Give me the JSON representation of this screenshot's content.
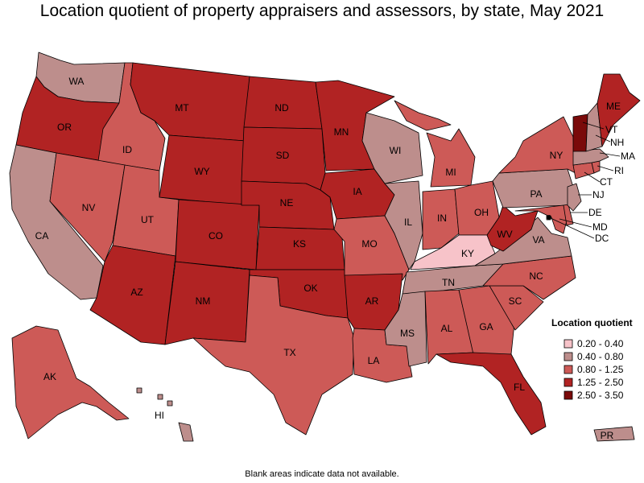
{
  "title": "Location quotient of property appraisers and assessors, by state, May 2021",
  "footnote": "Blank areas indicate data not available.",
  "legend": {
    "title": "Location quotient",
    "bins": [
      {
        "label": "0.20 - 0.40",
        "color": "#f7c3c9"
      },
      {
        "label": "0.40 - 0.80",
        "color": "#bd8e8c"
      },
      {
        "label": "0.80 - 1.25",
        "color": "#cd5a57"
      },
      {
        "label": "1.25 - 2.50",
        "color": "#b12323"
      },
      {
        "label": "2.50 - 3.50",
        "color": "#7a0a0a"
      }
    ]
  },
  "states": {
    "WA": 1,
    "OR": 3,
    "CA": 1,
    "ID": 2,
    "NV": 2,
    "UT": 2,
    "AZ": 3,
    "MT": 3,
    "WY": 3,
    "CO": 3,
    "NM": 3,
    "ND": 3,
    "SD": 3,
    "NE": 3,
    "KS": 3,
    "OK": 3,
    "TX": 2,
    "MN": 3,
    "IA": 3,
    "MO": 2,
    "AR": 3,
    "LA": 2,
    "WI": 1,
    "IL": 1,
    "MI": 2,
    "IN": 2,
    "OH": 2,
    "KY": 0,
    "TN": 1,
    "MS": 1,
    "AL": 2,
    "GA": 2,
    "FL": 3,
    "SC": 2,
    "NC": 2,
    "VA": 1,
    "WV": 3,
    "MD": 2,
    "DE": 2,
    "DC": 1,
    "PA": 1,
    "NJ": 1,
    "NY": 2,
    "CT": 2,
    "RI": 2,
    "MA": 1,
    "VT": 4,
    "NH": 1,
    "ME": 3,
    "AK": 2,
    "HI": 1,
    "PR": 1
  }
}
